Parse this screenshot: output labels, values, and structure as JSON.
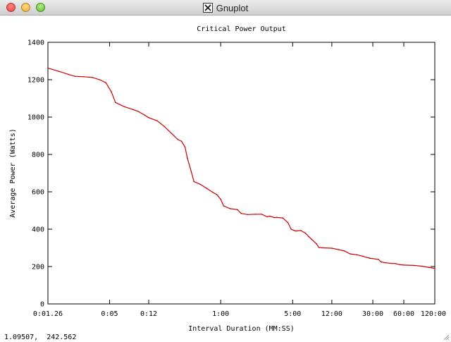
{
  "window": {
    "title": "Gnuplot",
    "x_icon": "x11-icon",
    "controls": [
      "close-button",
      "minimize-button",
      "zoom-button"
    ]
  },
  "status": {
    "coordinates": "1.09507,  242.562"
  },
  "colors": {
    "series": "#cc0000",
    "axes": "#000000",
    "background": "#ffffff"
  },
  "chart_data": {
    "type": "line",
    "title": "Critical Power Output",
    "xlabel": "Interval Duration (MM:SS)",
    "ylabel": "Average Power (Watts)",
    "x_scale": "log",
    "xlim": [
      "0:01.26",
      "120:00"
    ],
    "ylim": [
      0,
      1400
    ],
    "grid": false,
    "legend": "none",
    "x_ticks": [
      "0:01.26",
      "0:05",
      "0:12",
      "1:00",
      "5:00",
      "12:00",
      "30:00",
      "60:00",
      "120:00"
    ],
    "y_ticks": [
      "0",
      "200",
      "400",
      "600",
      "800",
      "1000",
      "1200",
      "1400"
    ],
    "series": [
      {
        "points": [
          [
            "0:01.26",
            1262
          ],
          [
            "0:01.6",
            1245
          ],
          [
            "0:02",
            1228
          ],
          [
            "0:02.3",
            1218
          ],
          [
            "0:02.8",
            1216
          ],
          [
            "0:03.4",
            1212
          ],
          [
            "0:04",
            1200
          ],
          [
            "0:04.6",
            1184
          ],
          [
            "0:05.2",
            1135
          ],
          [
            "0:05.7",
            1078
          ],
          [
            "0:07",
            1055
          ],
          [
            "0:08.5",
            1040
          ],
          [
            "0:09.5",
            1030
          ],
          [
            "0:11",
            1010
          ],
          [
            "0:12",
            997
          ],
          [
            "0:14.5",
            980
          ],
          [
            "0:17",
            950
          ],
          [
            "0:20",
            912
          ],
          [
            "0:23",
            880
          ],
          [
            "0:25",
            870
          ],
          [
            "0:27",
            840
          ],
          [
            "0:28.5",
            780
          ],
          [
            "0:31",
            710
          ],
          [
            "0:33",
            655
          ],
          [
            "0:38",
            640
          ],
          [
            "0:44",
            618
          ],
          [
            "0:50",
            598
          ],
          [
            "0:55",
            585
          ],
          [
            "1:00",
            560
          ],
          [
            "1:04",
            525
          ],
          [
            "1:14",
            510
          ],
          [
            "1:27",
            505
          ],
          [
            "1:35",
            484
          ],
          [
            "1:50",
            478
          ],
          [
            "2:10",
            480
          ],
          [
            "2:30",
            480
          ],
          [
            "2:50",
            466
          ],
          [
            "3:00",
            470
          ],
          [
            "3:20",
            462
          ],
          [
            "3:30",
            463
          ],
          [
            "4:00",
            460
          ],
          [
            "4:30",
            435
          ],
          [
            "4:50",
            400
          ],
          [
            "5:20",
            390
          ],
          [
            "6:00",
            393
          ],
          [
            "6:40",
            378
          ],
          [
            "7:10",
            360
          ],
          [
            "7:40",
            345
          ],
          [
            "8:30",
            322
          ],
          [
            "9:00",
            302
          ],
          [
            "10:00",
            300
          ],
          [
            "12:00",
            298
          ],
          [
            "14:00",
            290
          ],
          [
            "16:00",
            283
          ],
          [
            "18:00",
            268
          ],
          [
            "21:00",
            263
          ],
          [
            "24:00",
            255
          ],
          [
            "28:00",
            245
          ],
          [
            "34:00",
            238
          ],
          [
            "36:00",
            225
          ],
          [
            "40:00",
            220
          ],
          [
            "45:00",
            217
          ],
          [
            "50:00",
            216
          ],
          [
            "55:00",
            210
          ],
          [
            "60:00",
            208
          ],
          [
            "75:00",
            206
          ],
          [
            "90:00",
            202
          ],
          [
            "105:00",
            196
          ],
          [
            "120:00",
            190
          ]
        ]
      }
    ]
  }
}
